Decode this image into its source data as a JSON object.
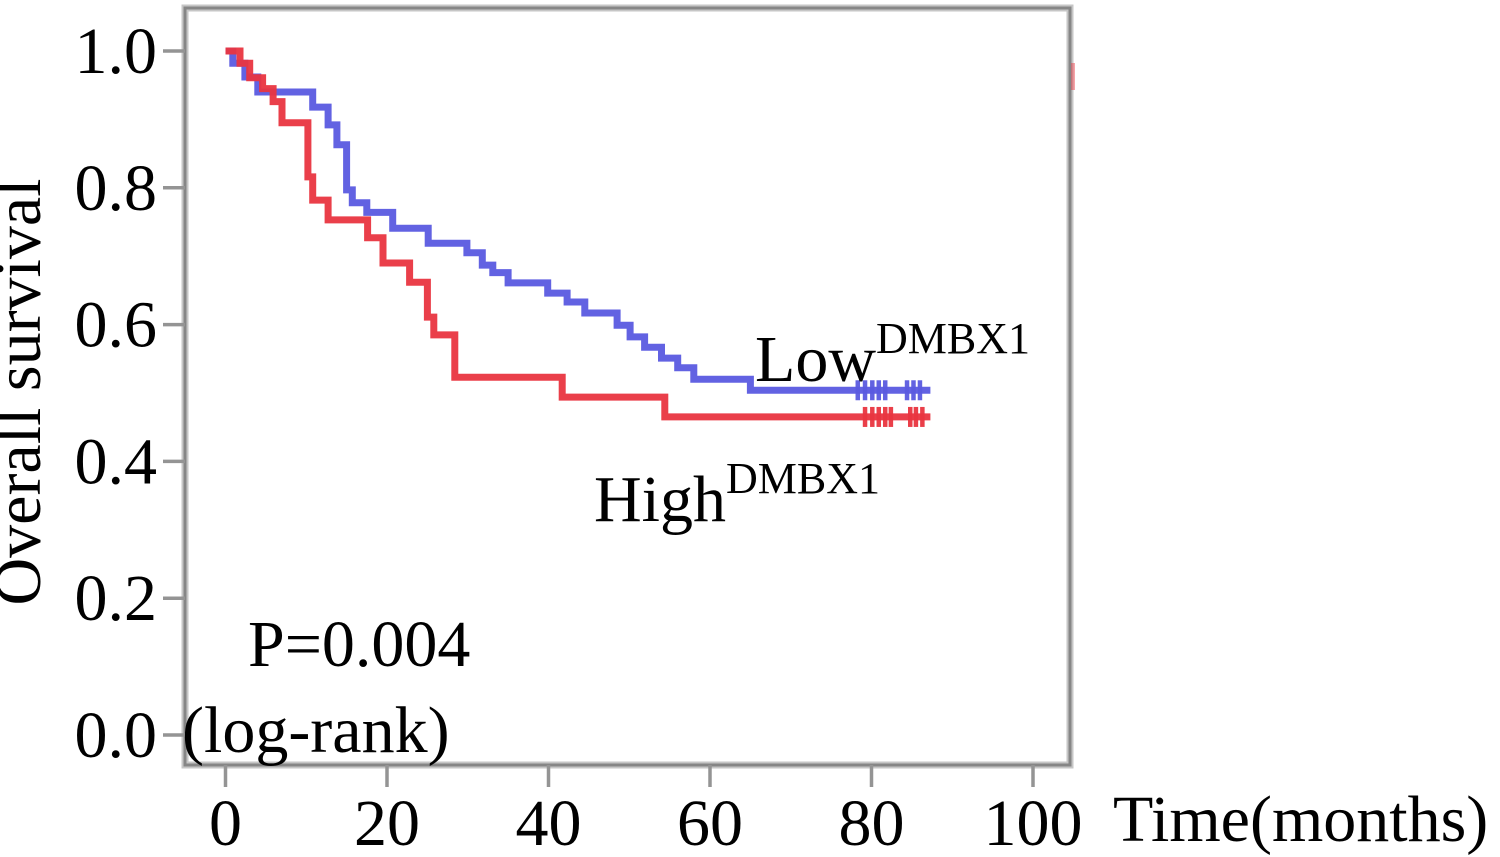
{
  "figure": {
    "background": "#ffffff",
    "frame_color": "#868686",
    "frame_halo_color": "#c6c6c6",
    "tick_color": "#949494",
    "text_color": "#000000"
  },
  "chart_data": {
    "type": "line",
    "subtype": "kaplan-meier-step-survival",
    "title": "",
    "xlabel": "Time(months)",
    "ylabel": "Overall survival",
    "xlim": [
      0,
      100
    ],
    "ylim": [
      0.0,
      1.0
    ],
    "grid": false,
    "legend_position": "inline-labels",
    "xticks": {
      "values": [
        0,
        20,
        40,
        60,
        80,
        100
      ],
      "labels": [
        "0",
        "20",
        "40",
        "60",
        "80",
        "100"
      ]
    },
    "yticks": {
      "values": [
        0.0,
        0.2,
        0.4,
        0.6,
        0.8,
        1.0
      ],
      "labels": [
        "0.0",
        "0.2",
        "0.4",
        "0.6",
        "0.8",
        "1.0"
      ]
    },
    "annotations": {
      "pvalue": "P=0.004",
      "test": "(log-rank)"
    },
    "series": [
      {
        "name": "Low DMBX1",
        "label_base": "Low",
        "label_sup": "DMBX1",
        "color": "#5a5ae0",
        "steps": [
          [
            0,
            1.0
          ],
          [
            0.9,
            0.982
          ],
          [
            2.4,
            0.962
          ],
          [
            4.0,
            0.94
          ],
          [
            10.8,
            0.918
          ],
          [
            12.7,
            0.892
          ],
          [
            13.8,
            0.863
          ],
          [
            15.0,
            0.797
          ],
          [
            15.7,
            0.778
          ],
          [
            17.5,
            0.764
          ],
          [
            20.7,
            0.741
          ],
          [
            25.1,
            0.719
          ],
          [
            29.9,
            0.705
          ],
          [
            31.8,
            0.687
          ],
          [
            33.1,
            0.676
          ],
          [
            35.0,
            0.661
          ],
          [
            39.9,
            0.646
          ],
          [
            42.3,
            0.633
          ],
          [
            44.5,
            0.617
          ],
          [
            48.5,
            0.599
          ],
          [
            50.1,
            0.582
          ],
          [
            51.9,
            0.567
          ],
          [
            54.0,
            0.551
          ],
          [
            56.0,
            0.537
          ],
          [
            58.0,
            0.52
          ],
          [
            65.0,
            0.504
          ]
        ],
        "end_time": 87.3,
        "censor_marks": [
          [
            78.3,
            0.504
          ],
          [
            79.2,
            0.504
          ],
          [
            80.1,
            0.504
          ],
          [
            80.9,
            0.504
          ],
          [
            81.7,
            0.504
          ],
          [
            84.4,
            0.504
          ],
          [
            85.2,
            0.504
          ],
          [
            86.0,
            0.504
          ]
        ]
      },
      {
        "name": "High DMBX1",
        "label_base": "High",
        "label_sup": "DMBX1",
        "color": "#e93540",
        "steps": [
          [
            0,
            1.0
          ],
          [
            1.8,
            0.982
          ],
          [
            3.0,
            0.961
          ],
          [
            4.6,
            0.945
          ],
          [
            5.9,
            0.926
          ],
          [
            7.0,
            0.895
          ],
          [
            10.2,
            0.816
          ],
          [
            10.8,
            0.782
          ],
          [
            12.7,
            0.753
          ],
          [
            17.6,
            0.727
          ],
          [
            19.5,
            0.69
          ],
          [
            22.8,
            0.662
          ],
          [
            25.0,
            0.611
          ],
          [
            25.8,
            0.585
          ],
          [
            28.4,
            0.523
          ],
          [
            41.7,
            0.494
          ],
          [
            54.4,
            0.465
          ]
        ],
        "end_time": 87.3,
        "censor_marks": [
          [
            79.2,
            0.465
          ],
          [
            80.1,
            0.465
          ],
          [
            80.9,
            0.465
          ],
          [
            81.7,
            0.465
          ],
          [
            82.4,
            0.465
          ],
          [
            84.8,
            0.465
          ],
          [
            85.5,
            0.465
          ],
          [
            86.3,
            0.465
          ]
        ]
      }
    ]
  }
}
